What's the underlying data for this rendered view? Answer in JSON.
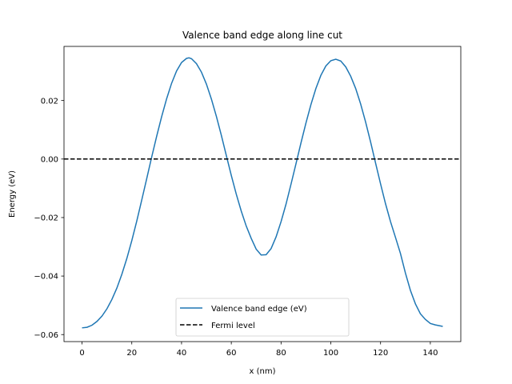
{
  "chart_data": {
    "type": "line",
    "title": "Valence band edge along line cut",
    "xlabel": "x (nm)",
    "ylabel": "Energy (eV)",
    "xlim": [
      -7.25,
      152.25
    ],
    "ylim": [
      -0.0624,
      0.0385
    ],
    "xticks": [
      0,
      20,
      40,
      60,
      80,
      100,
      120,
      140
    ],
    "xtick_labels": [
      "0",
      "20",
      "40",
      "60",
      "80",
      "100",
      "120",
      "140"
    ],
    "yticks": [
      -0.06,
      -0.04,
      -0.02,
      0.0,
      0.02
    ],
    "ytick_labels": [
      "−0.06",
      "−0.04",
      "−0.02",
      "0.00",
      "0.02"
    ],
    "grid": false,
    "legend_position": "lower center",
    "colors": {
      "band": "#1f77b4",
      "fermi": "#000000"
    },
    "series": [
      {
        "name": "Valence band edge (eV)",
        "style": "solid",
        "x": [
          0,
          2,
          4,
          6,
          8,
          10,
          12,
          14,
          16,
          18,
          20,
          22,
          24,
          26,
          28,
          30,
          32,
          34,
          36,
          38,
          40,
          42,
          43,
          44,
          46,
          48,
          50,
          52,
          54,
          56,
          58,
          60,
          62,
          64,
          66,
          68,
          70,
          72,
          74,
          76,
          78,
          80,
          82,
          84,
          86,
          88,
          90,
          92,
          94,
          96,
          98,
          100,
          102,
          104,
          106,
          108,
          110,
          112,
          114,
          116,
          118,
          120,
          122,
          124,
          126,
          128,
          130,
          132,
          134,
          136,
          138,
          140,
          142,
          145
        ],
        "y": [
          -0.0577,
          -0.0575,
          -0.0568,
          -0.0555,
          -0.0537,
          -0.0512,
          -0.048,
          -0.0441,
          -0.0394,
          -0.034,
          -0.0279,
          -0.0212,
          -0.014,
          -0.0067,
          0.0007,
          0.0078,
          0.0145,
          0.0206,
          0.0259,
          0.0301,
          0.033,
          0.0344,
          0.0346,
          0.0343,
          0.0326,
          0.0297,
          0.0256,
          0.0205,
          0.0146,
          0.0081,
          0.0012,
          -0.0056,
          -0.012,
          -0.0178,
          -0.0229,
          -0.0271,
          -0.0308,
          -0.0328,
          -0.0327,
          -0.0306,
          -0.0266,
          -0.0214,
          -0.0154,
          -0.0086,
          -0.0016,
          0.0055,
          0.0123,
          0.0186,
          0.0241,
          0.0286,
          0.0318,
          0.0336,
          0.0341,
          0.0335,
          0.0315,
          0.0283,
          0.0241,
          0.0188,
          0.0126,
          0.0058,
          -0.0014,
          -0.0085,
          -0.0153,
          -0.0214,
          -0.0268,
          -0.0323,
          -0.039,
          -0.0449,
          -0.0495,
          -0.0529,
          -0.0548,
          -0.0562,
          -0.0567,
          -0.0572
        ]
      },
      {
        "name": "Fermi level",
        "style": "dashed",
        "x": [
          -7.25,
          152.25
        ],
        "y": [
          0.0,
          0.0
        ]
      }
    ]
  }
}
